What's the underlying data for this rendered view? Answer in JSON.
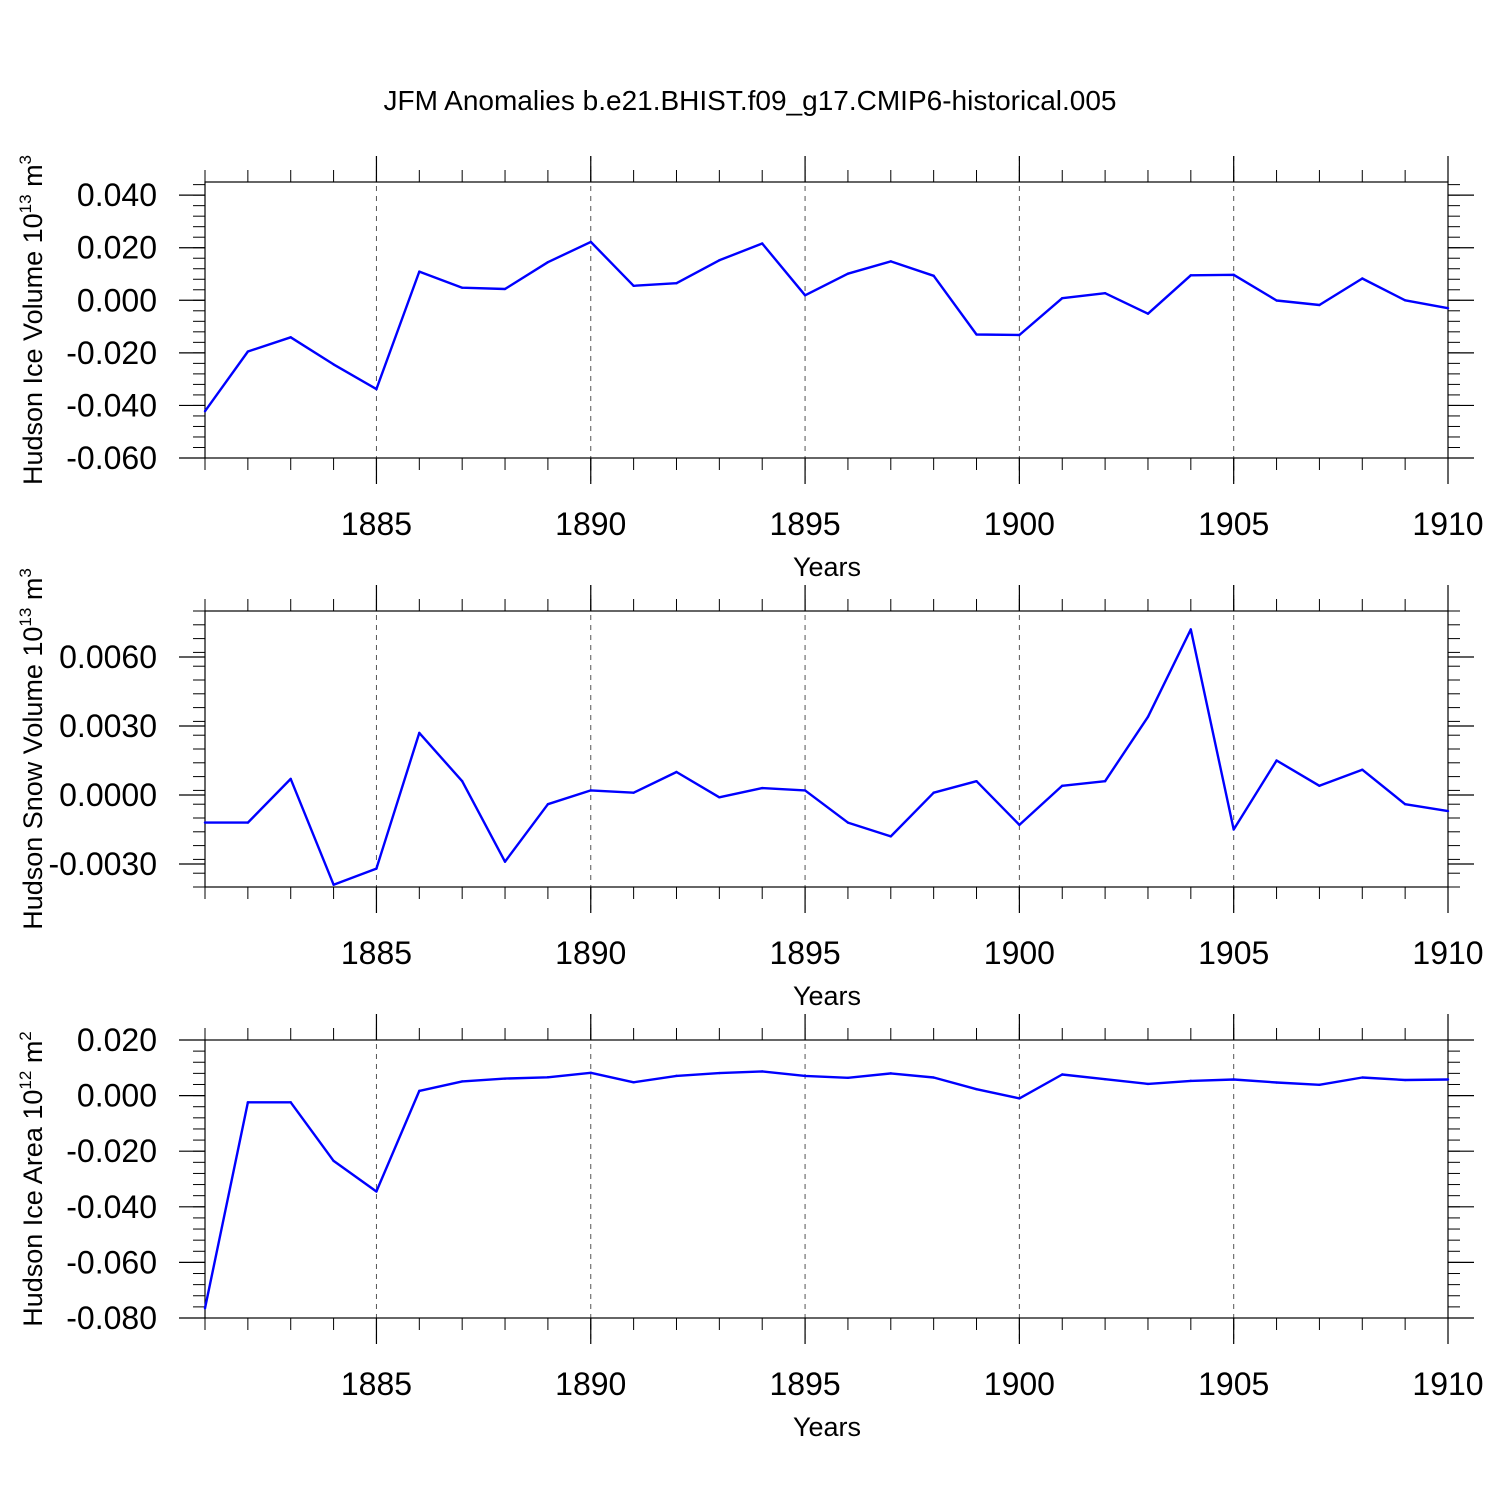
{
  "figure_title": "JFM Anomalies b.e21.BHIST.f09_g17.CMIP6-historical.005",
  "chart_data": [
    {
      "type": "line",
      "title": "JFM Anomalies b.e21.BHIST.f09_g17.CMIP6-historical.005",
      "ylabel_text": "Hudson Ice Volume 10",
      "ylabel_exp": "13",
      "ylabel_unit": " m",
      "ylabel_unit_exp": "3",
      "xlabel": "Years",
      "xlim": [
        1881,
        1910
      ],
      "ylim": [
        -0.06,
        0.045
      ],
      "yticks": [
        -0.06,
        -0.04,
        -0.02,
        0.0,
        0.02,
        0.04
      ],
      "ytick_labels": [
        "-0.060",
        "-0.040",
        "-0.020",
        "0.000",
        "0.020",
        "0.040"
      ],
      "xticks": [
        1885,
        1890,
        1895,
        1900,
        1905,
        1910
      ],
      "xtick_labels": [
        "1885",
        "1890",
        "1895",
        "1900",
        "1905",
        "1910"
      ],
      "grid": "vertical dashed at major x ticks",
      "series": [
        {
          "name": "Hudson Ice Volume",
          "color": "#0000ff",
          "x": [
            1881,
            1882,
            1883,
            1884,
            1885,
            1886,
            1887,
            1888,
            1889,
            1890,
            1891,
            1892,
            1893,
            1894,
            1895,
            1896,
            1897,
            1898,
            1899,
            1900,
            1901,
            1902,
            1903,
            1904,
            1905,
            1906,
            1907,
            1908,
            1909,
            1910
          ],
          "values": [
            -0.0422,
            -0.0195,
            -0.0141,
            -0.0244,
            -0.0338,
            0.0109,
            0.0048,
            0.0043,
            0.0145,
            0.0222,
            0.0055,
            0.0065,
            0.0152,
            0.0216,
            0.0019,
            0.0101,
            0.0148,
            0.0093,
            -0.013,
            -0.0132,
            0.0008,
            0.0027,
            -0.0051,
            0.0095,
            0.0097,
            -0.0001,
            -0.0018,
            0.0083,
            0.0,
            -0.003
          ]
        }
      ]
    },
    {
      "type": "line",
      "ylabel_text": "Hudson Snow Volume 10",
      "ylabel_exp": "13",
      "ylabel_unit": " m",
      "ylabel_unit_exp": "3",
      "xlabel": "Years",
      "xlim": [
        1881,
        1910
      ],
      "ylim": [
        -0.004,
        0.008
      ],
      "yticks": [
        -0.003,
        0.0,
        0.003,
        0.006
      ],
      "ytick_labels": [
        "-0.0030",
        "0.0000",
        "0.0030",
        "0.0060"
      ],
      "xticks": [
        1885,
        1890,
        1895,
        1900,
        1905,
        1910
      ],
      "xtick_labels": [
        "1885",
        "1890",
        "1895",
        "1900",
        "1905",
        "1910"
      ],
      "grid": "vertical dashed at major x ticks",
      "series": [
        {
          "name": "Hudson Snow Volume",
          "color": "#0000ff",
          "x": [
            1881,
            1882,
            1883,
            1884,
            1885,
            1886,
            1887,
            1888,
            1889,
            1890,
            1891,
            1892,
            1893,
            1894,
            1895,
            1896,
            1897,
            1898,
            1899,
            1900,
            1901,
            1902,
            1903,
            1904,
            1905,
            1906,
            1907,
            1908,
            1909,
            1910
          ],
          "values": [
            -0.0012,
            -0.0012,
            0.0007,
            -0.0039,
            -0.0032,
            0.0027,
            0.0006,
            -0.0029,
            -0.0004,
            0.0002,
            0.0001,
            0.001,
            -0.0001,
            0.0003,
            0.0002,
            -0.0012,
            -0.0018,
            0.0001,
            0.0006,
            -0.0013,
            0.0004,
            0.0006,
            0.0034,
            0.0072,
            -0.0015,
            0.0015,
            0.0004,
            0.0011,
            -0.0004,
            -0.0007
          ]
        }
      ]
    },
    {
      "type": "line",
      "ylabel_text": "Hudson Ice Area 10",
      "ylabel_exp": "12",
      "ylabel_unit": " m",
      "ylabel_unit_exp": "2",
      "xlabel": "Years",
      "xlim": [
        1881,
        1910
      ],
      "ylim": [
        -0.08,
        0.02
      ],
      "yticks": [
        -0.08,
        -0.06,
        -0.04,
        -0.02,
        0.0,
        0.02
      ],
      "ytick_labels": [
        "-0.080",
        "-0.060",
        "-0.040",
        "-0.020",
        "0.000",
        "0.020"
      ],
      "xticks": [
        1885,
        1890,
        1895,
        1900,
        1905,
        1910
      ],
      "xtick_labels": [
        "1885",
        "1890",
        "1895",
        "1900",
        "1905",
        "1910"
      ],
      "grid": "vertical dashed at major x ticks",
      "series": [
        {
          "name": "Hudson Ice Area",
          "color": "#0000ff",
          "x": [
            1881,
            1882,
            1883,
            1884,
            1885,
            1886,
            1887,
            1888,
            1889,
            1890,
            1891,
            1892,
            1893,
            1894,
            1895,
            1896,
            1897,
            1898,
            1899,
            1900,
            1901,
            1902,
            1903,
            1904,
            1905,
            1906,
            1907,
            1908,
            1909,
            1910
          ],
          "values": [
            -0.0765,
            -0.0024,
            -0.0024,
            -0.0235,
            -0.0345,
            0.0017,
            0.0051,
            0.0061,
            0.0066,
            0.0082,
            0.0048,
            0.0071,
            0.0081,
            0.0087,
            0.0071,
            0.0064,
            0.008,
            0.0065,
            0.0023,
            -0.001,
            0.0076,
            0.0059,
            0.0042,
            0.0053,
            0.0058,
            0.0047,
            0.0039,
            0.0065,
            0.0056,
            0.0058
          ]
        }
      ]
    }
  ]
}
